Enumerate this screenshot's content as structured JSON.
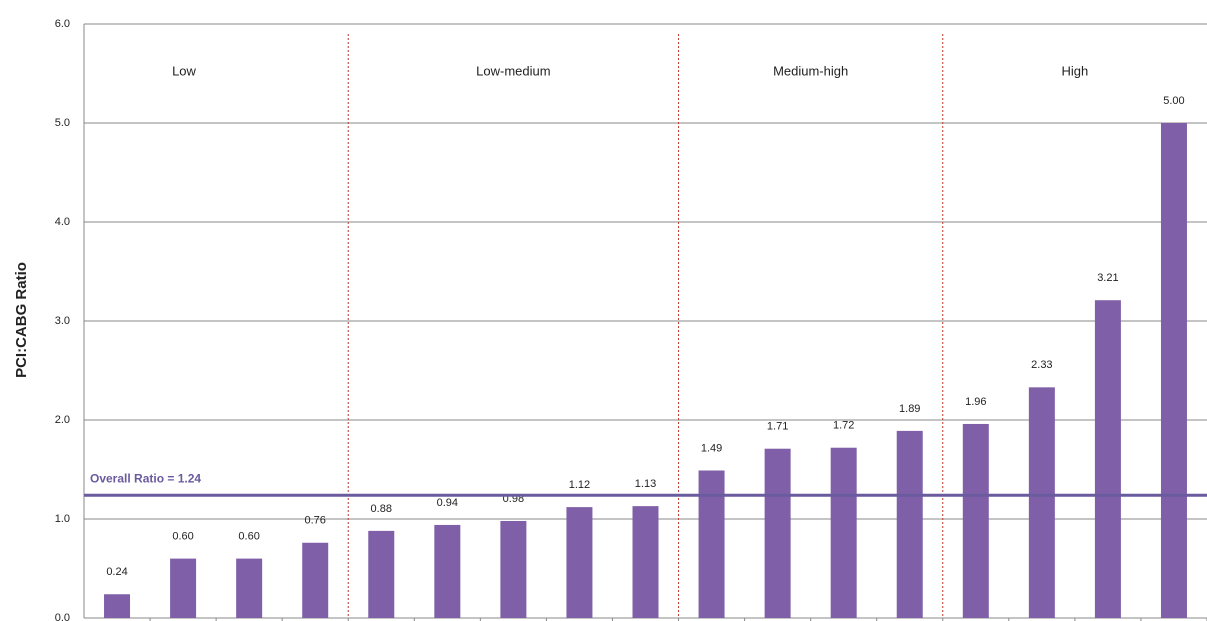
{
  "chart_data": {
    "type": "bar",
    "y_label": "PCI:CABG Ratio",
    "values": [
      0.24,
      0.6,
      0.6,
      0.76,
      0.88,
      0.94,
      0.98,
      1.12,
      1.13,
      1.49,
      1.71,
      1.72,
      1.89,
      1.96,
      2.33,
      3.21,
      5.0
    ],
    "value_labels": [
      "0.24",
      "0.60",
      "0.60",
      "0.76",
      "0.88",
      "0.94",
      "0.98",
      "1.12",
      "1.13",
      "1.49",
      "1.71",
      "1.72",
      "1.89",
      "1.96",
      "2.33",
      "3.21",
      "5.00"
    ],
    "color": "#7f60a8",
    "ylim": [
      0,
      6
    ],
    "yticks": [
      {
        "value": 0,
        "label": "0.0"
      },
      {
        "value": 1,
        "label": "1.0"
      },
      {
        "value": 2,
        "label": "2.0"
      },
      {
        "value": 3,
        "label": "3.0"
      },
      {
        "value": 4,
        "label": "4.0"
      },
      {
        "value": 5,
        "label": "5.0"
      },
      {
        "value": 6,
        "label": "6.0"
      }
    ],
    "grid": true,
    "groups": [
      {
        "name": "Low",
        "size": 4
      },
      {
        "name": "Low-medium",
        "size": 5
      },
      {
        "name": "Medium-high",
        "size": 4
      },
      {
        "name": "High",
        "size": 4
      }
    ],
    "reference_line": {
      "label": "Overall Ratio = 1.24",
      "value": 1.24,
      "color": "#6a5a9e"
    }
  }
}
